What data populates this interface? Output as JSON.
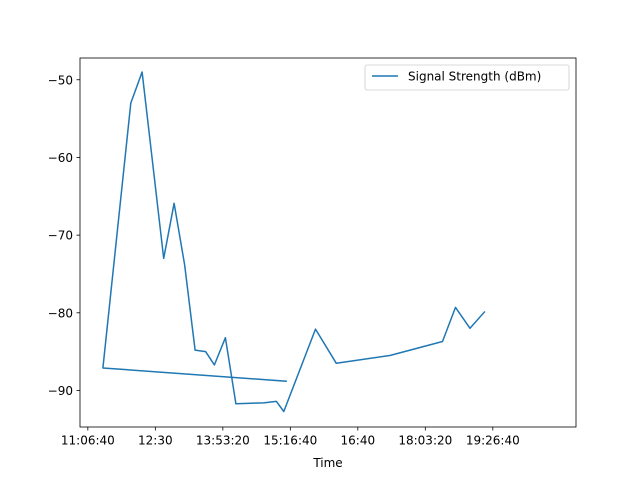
{
  "chart_data": {
    "type": "line",
    "title": "",
    "xlabel": "Time",
    "ylabel": "",
    "x_unit": "time of day (HH:MM:SS)",
    "xlim": [
      "10:56:59",
      "21:09:23"
    ],
    "ylim": [
      -94.7,
      -47.2
    ],
    "x_ticks": [
      {
        "t": "11:06:40",
        "label": "11:06:40"
      },
      {
        "t": "12:30:00",
        "label": "12:30"
      },
      {
        "t": "13:53:20",
        "label": "13:53:20"
      },
      {
        "t": "15:16:40",
        "label": "15:16:40"
      },
      {
        "t": "16:40:00",
        "label": "16:40"
      },
      {
        "t": "18:03:20",
        "label": "18:03:20"
      },
      {
        "t": "19:26:40",
        "label": "19:26:40"
      }
    ],
    "y_ticks": [
      -90,
      -80,
      -70,
      -60,
      -50
    ],
    "grid": false,
    "legend_position": "upper right",
    "series": [
      {
        "name": "Signal Strength (dBm)",
        "color": "#1f77b4",
        "points": [
          {
            "t": "15:11:25",
            "y": -88.8
          },
          {
            "t": "11:25:16",
            "y": -87.1
          },
          {
            "t": "11:59:43",
            "y": -53.0
          },
          {
            "t": "12:13:39",
            "y": -49.0
          },
          {
            "t": "12:40:16",
            "y": -73.0
          },
          {
            "t": "12:53:10",
            "y": -65.9
          },
          {
            "t": "13:06:08",
            "y": -73.8
          },
          {
            "t": "13:19:05",
            "y": -84.8
          },
          {
            "t": "13:32:01",
            "y": -85.0
          },
          {
            "t": "13:42:52",
            "y": -86.7
          },
          {
            "t": "13:56:30",
            "y": -83.2
          },
          {
            "t": "14:09:25",
            "y": -91.7
          },
          {
            "t": "14:43:25",
            "y": -91.6
          },
          {
            "t": "14:59:27",
            "y": -91.4
          },
          {
            "t": "15:08:36",
            "y": -92.7
          },
          {
            "t": "15:47:46",
            "y": -82.1
          },
          {
            "t": "16:13:25",
            "y": -86.5
          },
          {
            "t": "17:19:39",
            "y": -85.5
          },
          {
            "t": "18:24:31",
            "y": -83.7
          },
          {
            "t": "18:40:36",
            "y": -79.3
          },
          {
            "t": "18:58:27",
            "y": -82.0
          },
          {
            "t": "19:16:18",
            "y": -79.9
          }
        ]
      }
    ]
  }
}
